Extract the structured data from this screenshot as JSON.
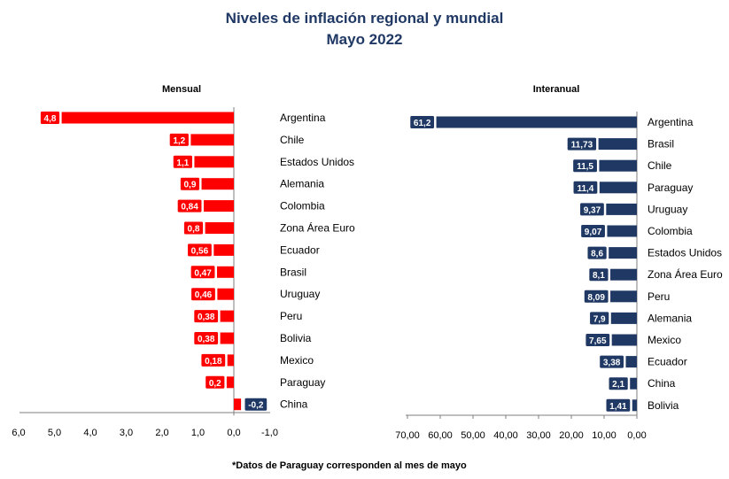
{
  "title": "Niveles de inflación regional y mundial",
  "subtitle": "Mayo 2022",
  "footnote": "*Datos de Paraguay corresponden al mes de mayo",
  "colors": {
    "title": "#1f3864",
    "monthly_bar": "#ff0000",
    "annual_bar": "#1f3864",
    "axis": "#7f7f7f"
  },
  "chart_data": [
    {
      "type": "bar",
      "orientation": "horizontal",
      "title": "Mensual",
      "x_direction": "reversed",
      "xlim": [
        6.0,
        -1.0
      ],
      "x_ticks": [
        "6,0",
        "5,0",
        "4,0",
        "3,0",
        "2,0",
        "1,0",
        "0,0",
        "-1,0"
      ],
      "x_tick_values": [
        6,
        5,
        4,
        3,
        2,
        1,
        0,
        -1
      ],
      "categories": [
        "Argentina",
        "Chile",
        "Estados Unidos",
        "Alemania",
        "Colombia",
        "Zona Área Euro",
        "Ecuador",
        "Brasil",
        "Uruguay",
        "Peru",
        "Bolivia",
        "Mexico",
        "Paraguay",
        "China"
      ],
      "values": [
        4.8,
        1.2,
        1.1,
        0.9,
        0.84,
        0.8,
        0.56,
        0.47,
        0.46,
        0.38,
        0.38,
        0.18,
        0.2,
        -0.2
      ],
      "labels": [
        "4,8",
        "1,2",
        "1,1",
        "0,9",
        "0,84",
        "0,8",
        "0,56",
        "0,47",
        "0,46",
        "0,38",
        "0,38",
        "0,18",
        "0,2",
        "-0,2"
      ]
    },
    {
      "type": "bar",
      "orientation": "horizontal",
      "title": "Interanual",
      "x_direction": "reversed",
      "xlim": [
        70,
        0
      ],
      "x_ticks": [
        "70,00",
        "60,00",
        "50,00",
        "40,00",
        "30,00",
        "20,00",
        "10,00",
        "0,00"
      ],
      "x_tick_values": [
        70,
        60,
        50,
        40,
        30,
        20,
        10,
        0
      ],
      "categories": [
        "Argentina",
        "Brasil",
        "Chile",
        "Paraguay",
        "Uruguay",
        "Colombia",
        "Estados Unidos",
        "Zona Área Euro",
        "Peru",
        "Alemania",
        "Mexico",
        "Ecuador",
        "China",
        "Bolivia"
      ],
      "values": [
        61.2,
        11.73,
        11.5,
        11.4,
        9.37,
        9.07,
        8.6,
        8.1,
        8.09,
        7.9,
        7.65,
        3.38,
        2.1,
        1.41
      ],
      "labels": [
        "61,2",
        "11,73",
        "11,5",
        "11,4",
        "9,37",
        "9,07",
        "8,6",
        "8,1",
        "8,09",
        "7,9",
        "7,65",
        "3,38",
        "2,1",
        "1,41"
      ]
    }
  ]
}
